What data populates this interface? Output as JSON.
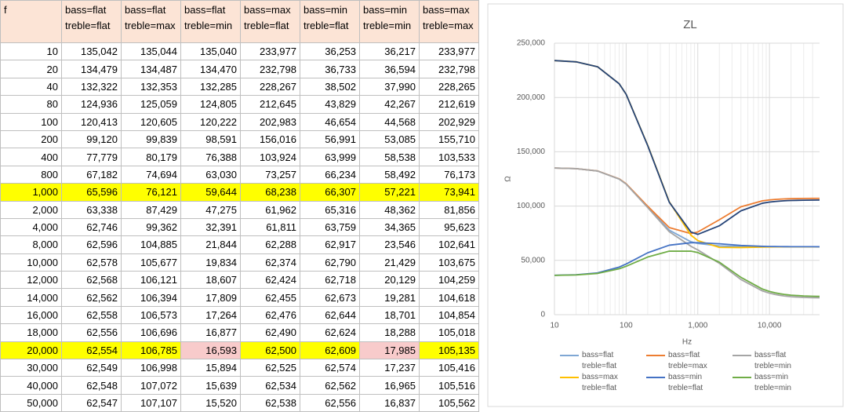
{
  "table": {
    "header": [
      "f",
      "bass=flat treble=flat",
      "bass=flat treble=max",
      "bass=flat treble=min",
      "bass=max treble=flat",
      "bass=min treble=flat",
      "bass=min treble=min",
      "bass=max treble=max"
    ],
    "rows": [
      [
        "10",
        "135,042",
        "135,044",
        "135,040",
        "233,977",
        "36,253",
        "36,217",
        "233,977"
      ],
      [
        "20",
        "134,479",
        "134,487",
        "134,470",
        "232,798",
        "36,733",
        "36,594",
        "232,798"
      ],
      [
        "40",
        "132,322",
        "132,353",
        "132,285",
        "228,267",
        "38,502",
        "37,990",
        "228,265"
      ],
      [
        "80",
        "124,936",
        "125,059",
        "124,805",
        "212,645",
        "43,829",
        "42,267",
        "212,619"
      ],
      [
        "100",
        "120,413",
        "120,605",
        "120,222",
        "202,983",
        "46,654",
        "44,568",
        "202,929"
      ],
      [
        "200",
        "99,120",
        "99,839",
        "98,591",
        "156,016",
        "56,991",
        "53,085",
        "155,710"
      ],
      [
        "400",
        "77,779",
        "80,179",
        "76,388",
        "103,924",
        "63,999",
        "58,538",
        "103,533"
      ],
      [
        "800",
        "67,182",
        "74,694",
        "63,030",
        "73,257",
        "66,234",
        "58,492",
        "76,173"
      ],
      [
        "1,000",
        "65,596",
        "76,121",
        "59,644",
        "68,238",
        "66,307",
        "57,221",
        "73,941"
      ],
      [
        "2,000",
        "63,338",
        "87,429",
        "47,275",
        "61,962",
        "65,316",
        "48,362",
        "81,856"
      ],
      [
        "4,000",
        "62,746",
        "99,362",
        "32,391",
        "61,811",
        "63,759",
        "34,365",
        "95,623"
      ],
      [
        "8,000",
        "62,596",
        "104,885",
        "21,844",
        "62,288",
        "62,917",
        "23,546",
        "102,641"
      ],
      [
        "10,000",
        "62,578",
        "105,677",
        "19,834",
        "62,374",
        "62,790",
        "21,429",
        "103,675"
      ],
      [
        "12,000",
        "62,568",
        "106,121",
        "18,607",
        "62,424",
        "62,718",
        "20,129",
        "104,259"
      ],
      [
        "14,000",
        "62,562",
        "106,394",
        "17,809",
        "62,455",
        "62,673",
        "19,281",
        "104,618"
      ],
      [
        "16,000",
        "62,558",
        "106,573",
        "17,264",
        "62,476",
        "62,644",
        "18,701",
        "104,854"
      ],
      [
        "18,000",
        "62,556",
        "106,696",
        "16,877",
        "62,490",
        "62,624",
        "18,288",
        "105,018"
      ],
      [
        "20,000",
        "62,554",
        "106,785",
        "16,593",
        "62,500",
        "62,609",
        "17,985",
        "105,135"
      ],
      [
        "30,000",
        "62,549",
        "106,998",
        "15,894",
        "62,525",
        "62,574",
        "17,237",
        "105,416"
      ],
      [
        "40,000",
        "62,548",
        "107,072",
        "15,639",
        "62,534",
        "62,562",
        "16,965",
        "105,516"
      ],
      [
        "50,000",
        "62,547",
        "107,107",
        "15,520",
        "62,538",
        "62,556",
        "16,837",
        "105,562"
      ]
    ]
  },
  "chart_data": {
    "type": "line",
    "title": "ZL",
    "x_label": "Hz",
    "y_label": "Ω",
    "log_x": true,
    "grid": true,
    "x": [
      10,
      20,
      40,
      80,
      100,
      200,
      400,
      800,
      1000,
      2000,
      4000,
      8000,
      10000,
      12000,
      14000,
      16000,
      18000,
      20000,
      30000,
      40000,
      50000
    ],
    "xlim": [
      10,
      50000
    ],
    "xticks": [
      10,
      100,
      {
        "value": 1000,
        "label": "1,000"
      },
      {
        "value": 10000,
        "label": "10,000"
      }
    ],
    "ylim": [
      0,
      250000
    ],
    "yticks": [
      0,
      {
        "value": 50000,
        "label": "50,000"
      },
      {
        "value": 100000,
        "label": "100,000"
      },
      {
        "value": 150000,
        "label": "150,000"
      },
      {
        "value": 200000,
        "label": "200,000"
      },
      {
        "value": 250000,
        "label": "250,000"
      }
    ],
    "series": [
      {
        "name": "bass=flat treble=flat",
        "color": "#7fa7d4",
        "values": [
          135042,
          134479,
          132322,
          124936,
          120413,
          99120,
          77779,
          67182,
          65596,
          63338,
          62746,
          62596,
          62578,
          62568,
          62562,
          62558,
          62556,
          62554,
          62549,
          62548,
          62547
        ]
      },
      {
        "name": "bass=flat treble=max",
        "color": "#ed7d31",
        "values": [
          135044,
          134487,
          132353,
          125059,
          120605,
          99839,
          80179,
          74694,
          76121,
          87429,
          99362,
          104885,
          105677,
          106121,
          106394,
          106573,
          106696,
          106785,
          106998,
          107072,
          107107
        ]
      },
      {
        "name": "bass=flat treble=min",
        "color": "#a5a5a5",
        "values": [
          135040,
          134470,
          132285,
          124805,
          120222,
          98591,
          76388,
          63030,
          59644,
          47275,
          32391,
          21844,
          19834,
          18607,
          17809,
          17264,
          16877,
          16593,
          15894,
          15639,
          15520
        ]
      },
      {
        "name": "bass=max treble=flat",
        "color": "#ffc000",
        "values": [
          233977,
          232798,
          228267,
          212645,
          202983,
          156016,
          103924,
          73257,
          68238,
          61962,
          61811,
          62288,
          62374,
          62424,
          62455,
          62476,
          62490,
          62500,
          62525,
          62534,
          62538
        ]
      },
      {
        "name": "bass=min treble=flat",
        "color": "#4472c4",
        "values": [
          36253,
          36733,
          38502,
          43829,
          46654,
          56991,
          63999,
          66234,
          66307,
          65316,
          63759,
          62917,
          62790,
          62718,
          62673,
          62644,
          62624,
          62609,
          62574,
          62562,
          62556
        ]
      },
      {
        "name": "bass=min treble=min",
        "color": "#70ad47",
        "values": [
          36217,
          36594,
          37990,
          42267,
          44568,
          53085,
          58538,
          58492,
          57221,
          48362,
          34365,
          23546,
          21429,
          20129,
          19281,
          18701,
          18288,
          17985,
          17237,
          16965,
          16837
        ]
      },
      {
        "color": "#264478",
        "values": [
          233977,
          232798,
          228265,
          212619,
          202929,
          155710,
          103533,
          76173,
          73941,
          81856,
          95623,
          102641,
          103675,
          104259,
          104618,
          104854,
          105018,
          105135,
          105416,
          105516,
          105562
        ]
      }
    ]
  }
}
